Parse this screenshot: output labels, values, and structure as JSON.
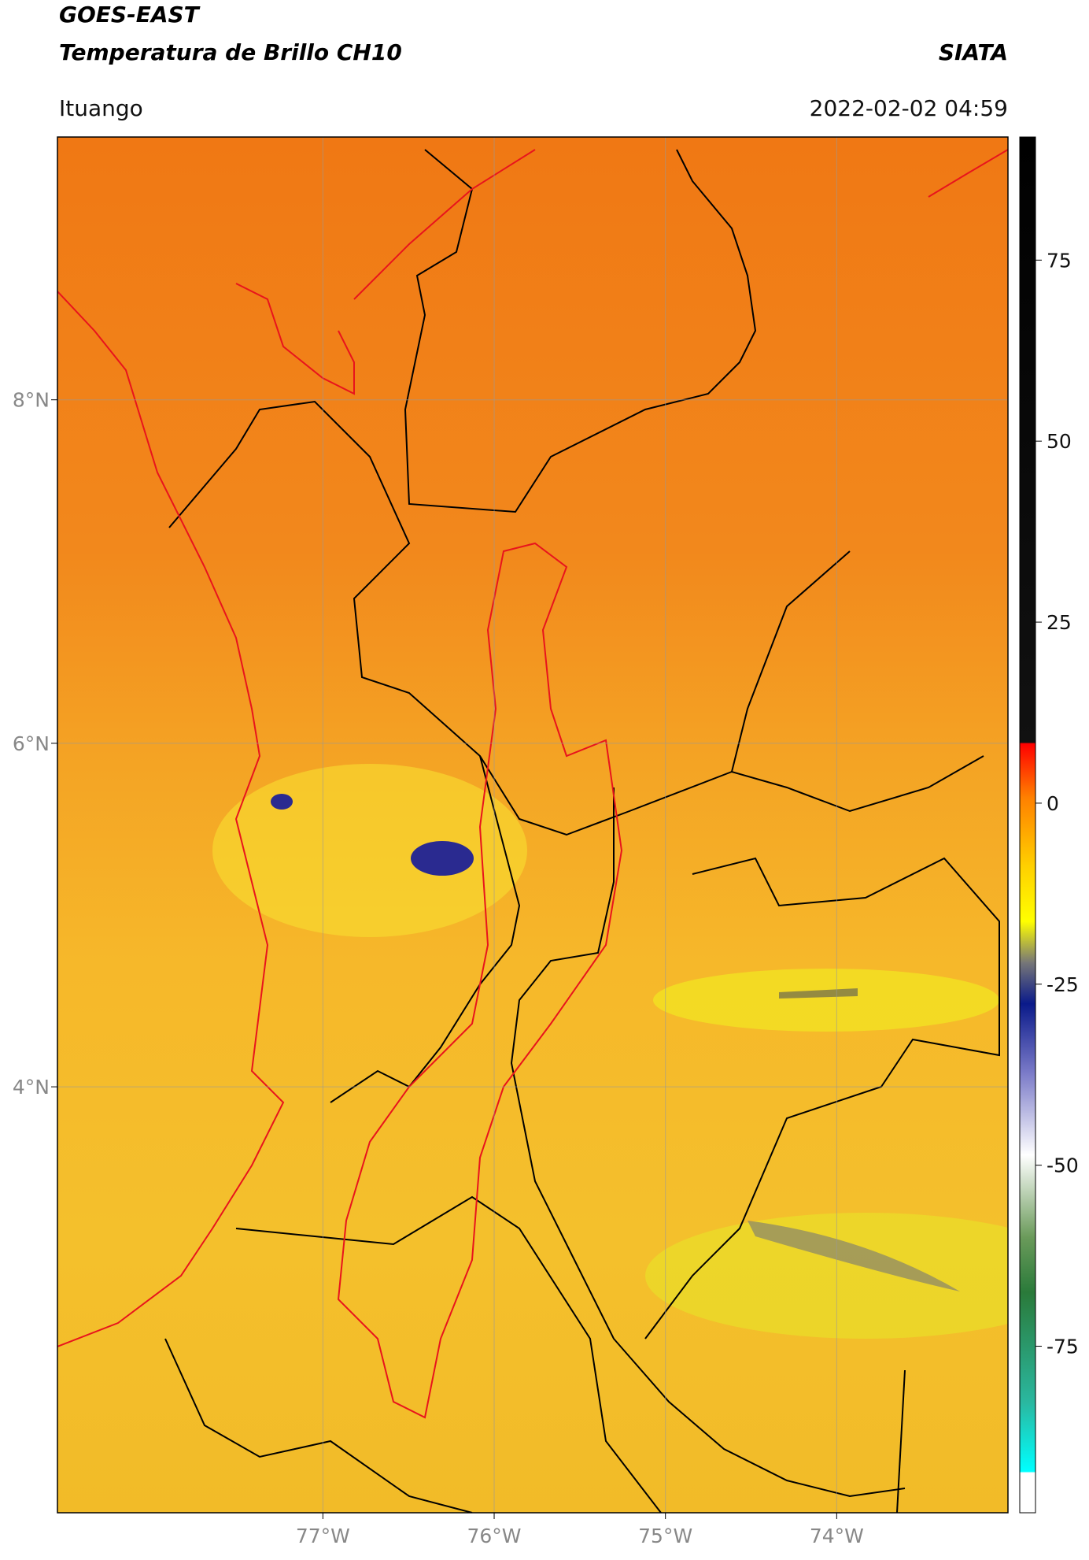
{
  "title": "GOES-EAST",
  "subtitle": "Temperatura de Brillo CH10",
  "brand": "SIATA",
  "location": "Ituango",
  "datetime": "2022-02-02 04:59",
  "map": {
    "lon_range": [
      -78.55,
      -73.0
    ],
    "lat_range": [
      1.52,
      9.53
    ],
    "lon_ticks": [
      {
        "value": -77,
        "label": "77°W"
      },
      {
        "value": -76,
        "label": "76°W"
      },
      {
        "value": -75,
        "label": "75°W"
      },
      {
        "value": -74,
        "label": "74°W"
      }
    ],
    "lat_ticks": [
      {
        "value": 8,
        "label": "8°N"
      },
      {
        "value": 6,
        "label": "6°N"
      },
      {
        "value": 4,
        "label": "4°N"
      }
    ]
  },
  "colorbar": {
    "range": [
      -98,
      92
    ],
    "ticks": [
      75,
      50,
      25,
      0,
      -25,
      -50,
      -75
    ]
  }
}
